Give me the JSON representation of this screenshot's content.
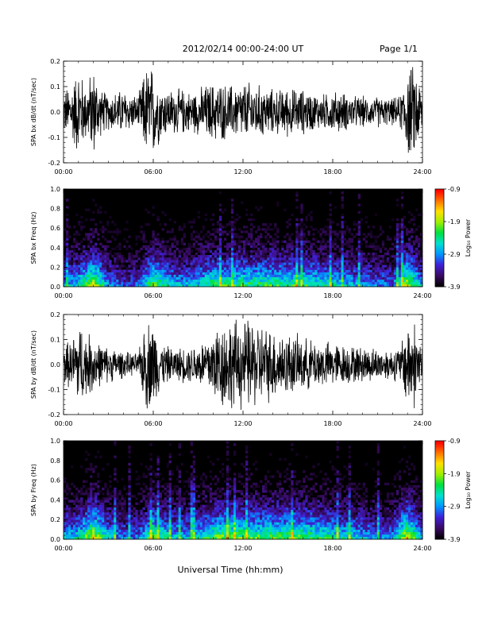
{
  "header": {
    "title": "2012/02/14  00:00-24:00 UT",
    "page": "Page 1/1"
  },
  "footer": {
    "x_title": "Universal Time (hh:mm)"
  },
  "colorbar": {
    "label": "Log₁₀ Power",
    "ticks": [
      "-0.9",
      "-1.9",
      "-2.9",
      "-3.9"
    ],
    "range": [
      -3.9,
      -0.9
    ],
    "colormap": [
      "#000000",
      "#3a0b64",
      "#3f1fd6",
      "#0096ff",
      "#00e0d0",
      "#00e040",
      "#a0f000",
      "#ffe000",
      "#ff7000",
      "#ff0000"
    ]
  },
  "chart_data": [
    {
      "type": "line",
      "ylabel": "SPA bx dB/dt (nT/sec)",
      "x_ticks": [
        "00:00",
        "06:00",
        "12:00",
        "18:00",
        "24:00"
      ],
      "y_ticks": [
        "0.2",
        "0.1",
        "0.0",
        "-0.1",
        "-0.2"
      ],
      "xlim": [
        0,
        24
      ],
      "ylim": [
        -0.2,
        0.2
      ],
      "envelope": {
        "hour": [
          0,
          0.5,
          1,
          1.5,
          2,
          2.5,
          3,
          3.5,
          4,
          4.5,
          5,
          5.5,
          6,
          6.5,
          7,
          7.5,
          8,
          8.5,
          9,
          9.5,
          10,
          10.5,
          11,
          11.5,
          12,
          12.5,
          13,
          13.5,
          14,
          14.5,
          15,
          15.5,
          16,
          16.5,
          17,
          17.5,
          18,
          18.5,
          19,
          19.5,
          20,
          20.5,
          21,
          21.5,
          22,
          22.5,
          23,
          23.5,
          24
        ],
        "amplitude": [
          0.1,
          0.12,
          0.2,
          0.12,
          0.2,
          0.1,
          0.08,
          0.09,
          0.1,
          0.08,
          0.07,
          0.2,
          0.2,
          0.12,
          0.1,
          0.1,
          0.1,
          0.09,
          0.1,
          0.12,
          0.13,
          0.13,
          0.12,
          0.12,
          0.13,
          0.13,
          0.12,
          0.11,
          0.1,
          0.1,
          0.11,
          0.1,
          0.1,
          0.09,
          0.08,
          0.08,
          0.09,
          0.09,
          0.08,
          0.07,
          0.07,
          0.06,
          0.07,
          0.06,
          0.06,
          0.07,
          0.2,
          0.2,
          0.1
        ]
      }
    },
    {
      "type": "heatmap",
      "ylabel": "SPA bx Freq (Hz)",
      "x_ticks": [
        "00:00",
        "06:00",
        "12:00",
        "18:00",
        "24:00"
      ],
      "y_ticks": [
        "1.0",
        "0.8",
        "0.6",
        "0.4",
        "0.2",
        "0.0"
      ],
      "xlim": [
        0,
        24
      ],
      "ylim": [
        0,
        1.0
      ],
      "z_label": "Log₁₀ Power",
      "z_range": [
        -3.9,
        -0.9
      ],
      "activity": {
        "hour": [
          0,
          1,
          2,
          3,
          4,
          5,
          6,
          7,
          8,
          9,
          10,
          11,
          12,
          13,
          14,
          15,
          16,
          17,
          18,
          19,
          20,
          21,
          22,
          23,
          24
        ],
        "level": [
          0.5,
          0.6,
          0.9,
          0.5,
          0.4,
          0.4,
          0.8,
          0.6,
          0.5,
          0.6,
          0.7,
          0.7,
          0.7,
          0.7,
          0.7,
          0.7,
          0.7,
          0.65,
          0.6,
          0.55,
          0.5,
          0.45,
          0.45,
          0.9,
          0.5
        ]
      }
    },
    {
      "type": "line",
      "ylabel": "SPA by dB/dt (nT/sec)",
      "x_ticks": [
        "00:00",
        "06:00",
        "12:00",
        "18:00",
        "24:00"
      ],
      "y_ticks": [
        "0.2",
        "0.1",
        "0.0",
        "-0.1",
        "-0.2"
      ],
      "xlim": [
        0,
        24
      ],
      "ylim": [
        -0.2,
        0.2
      ],
      "envelope": {
        "hour": [
          0,
          0.5,
          1,
          1.5,
          2,
          2.5,
          3,
          3.5,
          4,
          4.5,
          5,
          5.5,
          6,
          6.5,
          7,
          7.5,
          8,
          8.5,
          9,
          9.5,
          10,
          10.5,
          11,
          11.5,
          12,
          12.5,
          13,
          13.5,
          14,
          14.5,
          15,
          15.5,
          16,
          16.5,
          17,
          17.5,
          18,
          18.5,
          19,
          19.5,
          20,
          20.5,
          21,
          21.5,
          22,
          22.5,
          23,
          23.5,
          24
        ],
        "amplitude": [
          0.1,
          0.1,
          0.2,
          0.14,
          0.13,
          0.09,
          0.08,
          0.07,
          0.06,
          0.05,
          0.05,
          0.2,
          0.2,
          0.1,
          0.08,
          0.07,
          0.08,
          0.08,
          0.1,
          0.12,
          0.16,
          0.2,
          0.2,
          0.2,
          0.2,
          0.2,
          0.19,
          0.17,
          0.16,
          0.15,
          0.14,
          0.13,
          0.12,
          0.11,
          0.11,
          0.1,
          0.1,
          0.09,
          0.09,
          0.08,
          0.08,
          0.08,
          0.07,
          0.07,
          0.07,
          0.08,
          0.2,
          0.2,
          0.1
        ]
      }
    },
    {
      "type": "heatmap",
      "ylabel": "SPA by Freq (Hz)",
      "x_ticks": [
        "00:00",
        "06:00",
        "12:00",
        "18:00",
        "24:00"
      ],
      "y_ticks": [
        "1.0",
        "0.8",
        "0.6",
        "0.4",
        "0.2",
        "0.0"
      ],
      "xlim": [
        0,
        24
      ],
      "ylim": [
        0,
        1.0
      ],
      "z_label": "Log₁₀ Power",
      "z_range": [
        -3.9,
        -0.9
      ],
      "activity": {
        "hour": [
          0,
          1,
          2,
          3,
          4,
          5,
          6,
          7,
          8,
          9,
          10,
          11,
          12,
          13,
          14,
          15,
          16,
          17,
          18,
          19,
          20,
          21,
          22,
          23,
          24
        ],
        "level": [
          0.55,
          0.6,
          0.95,
          0.55,
          0.45,
          0.45,
          0.8,
          0.6,
          0.55,
          0.6,
          0.75,
          0.8,
          0.75,
          0.75,
          0.75,
          0.75,
          0.75,
          0.7,
          0.65,
          0.6,
          0.55,
          0.5,
          0.5,
          0.95,
          0.5
        ]
      }
    }
  ]
}
